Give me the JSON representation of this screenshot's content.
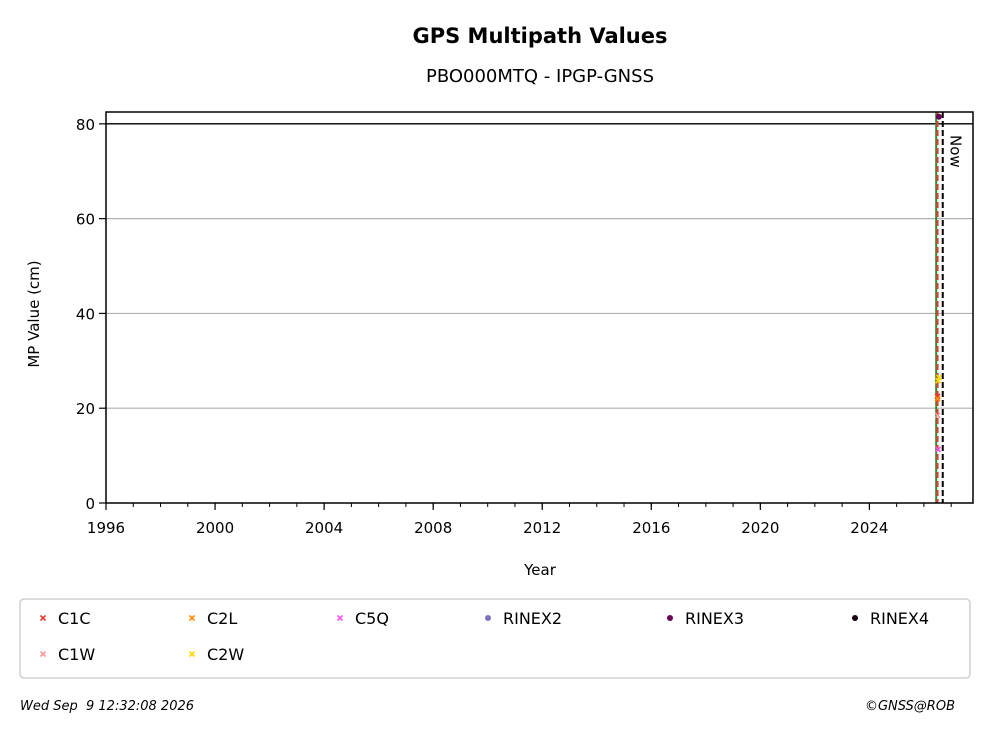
{
  "chart_data": {
    "type": "scatter",
    "title": "GPS Multipath Values",
    "subtitle": "PBO000MTQ - IPGP-GNSS",
    "xlabel": "Year",
    "ylabel": "MP Value (cm)",
    "xlim": [
      1996,
      2027.8
    ],
    "ylim": [
      0,
      82.5
    ],
    "x_ticks": [
      "1996",
      "2000",
      "2004",
      "2008",
      "2012",
      "2016",
      "2020",
      "2024"
    ],
    "y_ticks": [
      "0",
      "20",
      "40",
      "60",
      "80"
    ],
    "grid": "horizontal",
    "reference_line_y": 80,
    "now_label": "Now",
    "now_x": 2026.69,
    "series": [
      {
        "name": "C1C",
        "color": "#e8392e",
        "marker": "x",
        "x": [
          2026.5
        ],
        "y": [
          22.5
        ]
      },
      {
        "name": "C2L",
        "color": "#ff8c00",
        "marker": "x",
        "x": [
          2026.5
        ],
        "y": [
          22.0
        ]
      },
      {
        "name": "C5Q",
        "color": "#ff55ee",
        "marker": "x",
        "x": [
          2026.52
        ],
        "y": [
          11.3
        ]
      },
      {
        "name": "RINEX2",
        "color": "#8070c0",
        "marker": "dot",
        "x": [],
        "y": []
      },
      {
        "name": "RINEX3",
        "color": "#6a0055",
        "marker": "dot",
        "x": [
          2026.55
        ],
        "y": [
          81.5
        ]
      },
      {
        "name": "RINEX4",
        "color": "#1a0010",
        "marker": "dot",
        "x": [],
        "y": []
      },
      {
        "name": "C1W",
        "color": "#f09a9a",
        "marker": "x",
        "x": [
          2026.5
        ],
        "y": [
          18.5
        ]
      },
      {
        "name": "C2W",
        "color": "#ffd700",
        "marker": "x",
        "x": [
          2026.52,
          2026.55
        ],
        "y": [
          25.8,
          26.5
        ]
      }
    ],
    "vertical_lines": [
      {
        "x": 2026.45,
        "color": "#2e8b2e",
        "style": "solid"
      },
      {
        "x": 2026.5,
        "color": "#e8392e",
        "style": "dashed"
      },
      {
        "x": 2026.69,
        "color": "#000000",
        "style": "dashed"
      }
    ],
    "legend_position": "bottom"
  },
  "footer": {
    "timestamp": "Wed Sep  9 12:32:08 2026",
    "copyright": "©GNSS@ROB"
  }
}
